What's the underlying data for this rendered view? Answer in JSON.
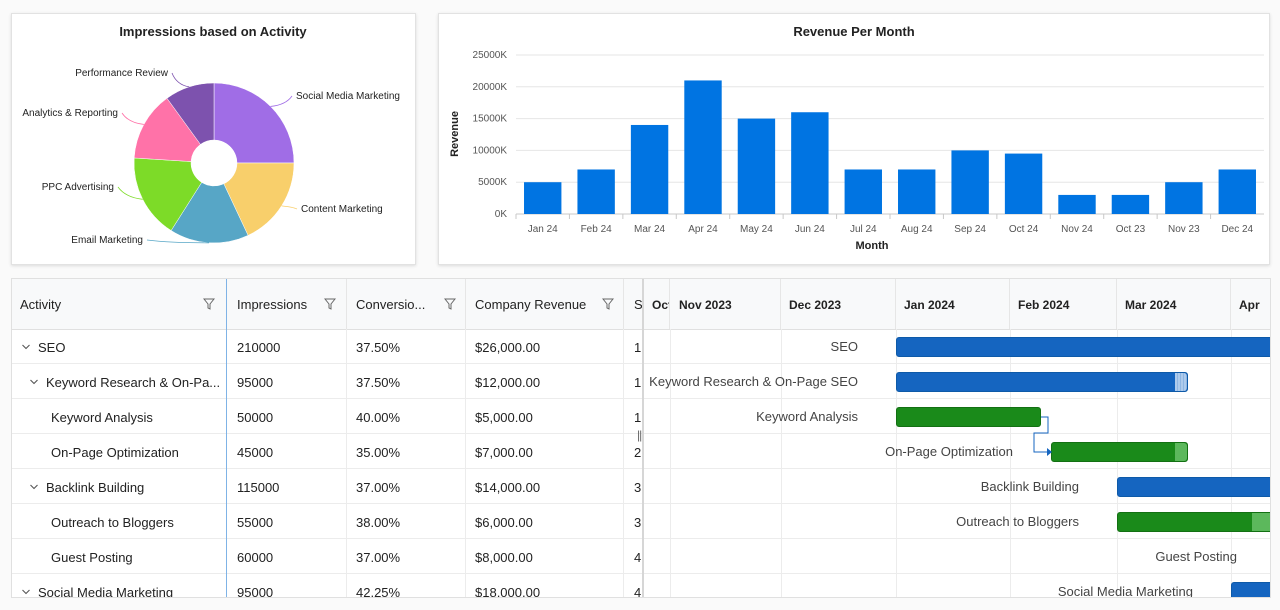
{
  "pie_chart": {
    "title": "Impressions based on Activity",
    "colors": [
      "#a06de6",
      "#f8cf6b",
      "#57a6c6",
      "#7ddb28",
      "#ff72a8",
      "#7d52ae"
    ],
    "chart_data": {
      "type": "pie",
      "title": "Impressions based on Activity",
      "donut": true,
      "labels": [
        "Social Media Marketing",
        "Content Marketing",
        "Email Marketing",
        "PPC Advertising",
        "Analytics & Reporting",
        "Performance Review"
      ],
      "values": [
        25,
        18,
        16,
        17,
        14,
        10
      ]
    }
  },
  "bar_chart": {
    "title": "Revenue Per Month",
    "color": "#0074e2",
    "chart_data": {
      "type": "bar",
      "title": "Revenue Per Month",
      "xlabel": "Month",
      "ylabel": "Revenue",
      "categories": [
        "Jan 24",
        "Feb 24",
        "Mar 24",
        "Apr 24",
        "May 24",
        "Jun 24",
        "Jul 24",
        "Aug 24",
        "Sep 24",
        "Oct 24",
        "Nov 24",
        "Oct 23",
        "Nov 23",
        "Dec 24"
      ],
      "values": [
        5000,
        7000,
        14000,
        21000,
        15000,
        16000,
        7000,
        7000,
        10000,
        9500,
        3000,
        3000,
        5000,
        7000
      ],
      "ylim": [
        0,
        25000
      ],
      "yticks": [
        "0K",
        "5000K",
        "10000K",
        "15000K",
        "20000K",
        "25000K"
      ],
      "grid": true
    }
  },
  "grid": {
    "columns": [
      "Activity",
      "Impressions",
      "Conversio...",
      "Company Revenue",
      "S"
    ],
    "rows": [
      {
        "name": "SEO",
        "level": 0,
        "expandable": true,
        "impressions": "210000",
        "conversion": "37.50%",
        "revenue": "$26,000.00",
        "s": "1"
      },
      {
        "name": "Keyword Research & On-Pa...",
        "level": 1,
        "expandable": true,
        "impressions": "95000",
        "conversion": "37.50%",
        "revenue": "$12,000.00",
        "s": "1"
      },
      {
        "name": "Keyword Analysis",
        "level": 2,
        "expandable": false,
        "impressions": "50000",
        "conversion": "40.00%",
        "revenue": "$5,000.00",
        "s": "1"
      },
      {
        "name": "On-Page Optimization",
        "level": 2,
        "expandable": false,
        "impressions": "45000",
        "conversion": "35.00%",
        "revenue": "$7,000.00",
        "s": "2"
      },
      {
        "name": "Backlink Building",
        "level": 1,
        "expandable": true,
        "impressions": "115000",
        "conversion": "37.00%",
        "revenue": "$14,000.00",
        "s": "3"
      },
      {
        "name": "Outreach to Bloggers",
        "level": 2,
        "expandable": false,
        "impressions": "55000",
        "conversion": "38.00%",
        "revenue": "$6,000.00",
        "s": "3"
      },
      {
        "name": "Guest Posting",
        "level": 2,
        "expandable": false,
        "impressions": "60000",
        "conversion": "37.00%",
        "revenue": "$8,000.00",
        "s": "4"
      },
      {
        "name": "Social Media Marketing",
        "level": 0,
        "expandable": true,
        "impressions": "95000",
        "conversion": "42.25%",
        "revenue": "$18,000.00",
        "s": "4"
      }
    ]
  },
  "timeline": {
    "months": [
      "Oct",
      "Nov 2023",
      "Dec 2023",
      "Jan 2024",
      "Feb 2024",
      "Mar 2024",
      "Apr"
    ],
    "splitter_glyph": "||",
    "task_labels": [
      "SEO",
      "Keyword Research & On-Page SEO",
      "Keyword Analysis",
      "On-Page Optimization",
      "Backlink Building",
      "Outreach to Bloggers",
      "Guest Posting",
      "Social Media Marketing"
    ],
    "colors": {
      "parent": "#1565c0",
      "child": "#1a8a1a",
      "child_progress": "#5cb85c",
      "parent_progress": "#aecbec"
    }
  }
}
